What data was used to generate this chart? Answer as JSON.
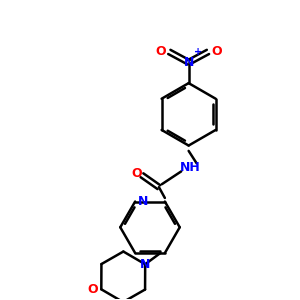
{
  "bg_color": "#ffffff",
  "bond_color": "#000000",
  "N_color": "#0000ff",
  "O_color": "#ff0000",
  "line_width": 1.8,
  "dbo": 0.08,
  "figsize": [
    3.0,
    3.0
  ],
  "dpi": 100,
  "xlim": [
    0,
    10
  ],
  "ylim": [
    0,
    10
  ]
}
